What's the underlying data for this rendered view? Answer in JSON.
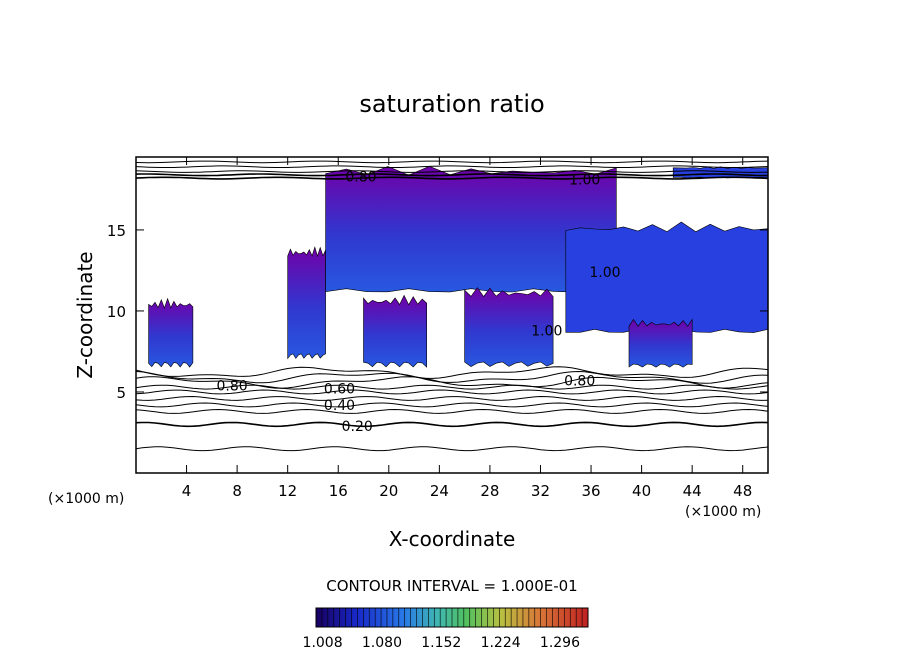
{
  "chart_data": {
    "type": "contour",
    "title": "saturation ratio",
    "xlabel": "X-coordinate",
    "ylabel": "Z-coordinate",
    "x_unit": "(×1000 m)",
    "y_unit": "(×1000 m)",
    "xlim": [
      0,
      50
    ],
    "ylim": [
      0,
      19.5
    ],
    "x_ticks": [
      4,
      8,
      12,
      16,
      20,
      24,
      28,
      32,
      36,
      40,
      44,
      48
    ],
    "y_ticks": [
      5,
      10,
      15
    ],
    "contour_interval_text": "CONTOUR INTERVAL = 1.000E-01",
    "contour_levels": [
      0.1,
      0.2,
      0.3,
      0.4,
      0.5,
      0.6,
      0.7,
      0.8,
      0.9,
      1.0
    ],
    "contour_labels": [
      {
        "text": "0.80",
        "x": 17.8,
        "y": 18.3
      },
      {
        "text": "1.00",
        "x": 35.5,
        "y": 18.1
      },
      {
        "text": "0.80",
        "x": 7.6,
        "y": 5.4
      },
      {
        "text": "0.60",
        "x": 16.1,
        "y": 5.2
      },
      {
        "text": "0.40",
        "x": 16.1,
        "y": 4.2
      },
      {
        "text": "0.20",
        "x": 17.5,
        "y": 2.9
      },
      {
        "text": "0.80",
        "x": 35.1,
        "y": 5.7
      },
      {
        "text": "1.00",
        "x": 37.1,
        "y": 12.4
      },
      {
        "text": "1.00",
        "x": 32.5,
        "y": 8.8
      }
    ],
    "shaded_color_scale": {
      "labels": [
        "1.008",
        "1.080",
        "1.152",
        "1.224",
        "1.296"
      ],
      "values": [
        1.008,
        1.08,
        1.152,
        1.224,
        1.296
      ],
      "range": [
        1.0,
        1.33
      ]
    },
    "supersaturated_regions": [
      {
        "x": [
          1,
          4.5
        ],
        "z": [
          6.5,
          10.8
        ]
      },
      {
        "x": [
          12,
          15
        ],
        "z": [
          7,
          14
        ]
      },
      {
        "x": [
          15,
          38
        ],
        "z": [
          11,
          19
        ]
      },
      {
        "x": [
          18,
          23
        ],
        "z": [
          6.5,
          11
        ]
      },
      {
        "x": [
          26,
          33
        ],
        "z": [
          6.5,
          11.5
        ]
      },
      {
        "x": [
          34,
          50
        ],
        "z": [
          8.5,
          15.5
        ]
      },
      {
        "x": [
          39,
          44
        ],
        "z": [
          6.5,
          9.5
        ]
      },
      {
        "x": [
          42.5,
          50
        ],
        "z": [
          18.2,
          18.9
        ]
      }
    ],
    "grid": false,
    "colors": {
      "purple_fill": "#7000a8",
      "blue_fill": "#2840e0",
      "deep_blue": "#1828c8"
    }
  }
}
